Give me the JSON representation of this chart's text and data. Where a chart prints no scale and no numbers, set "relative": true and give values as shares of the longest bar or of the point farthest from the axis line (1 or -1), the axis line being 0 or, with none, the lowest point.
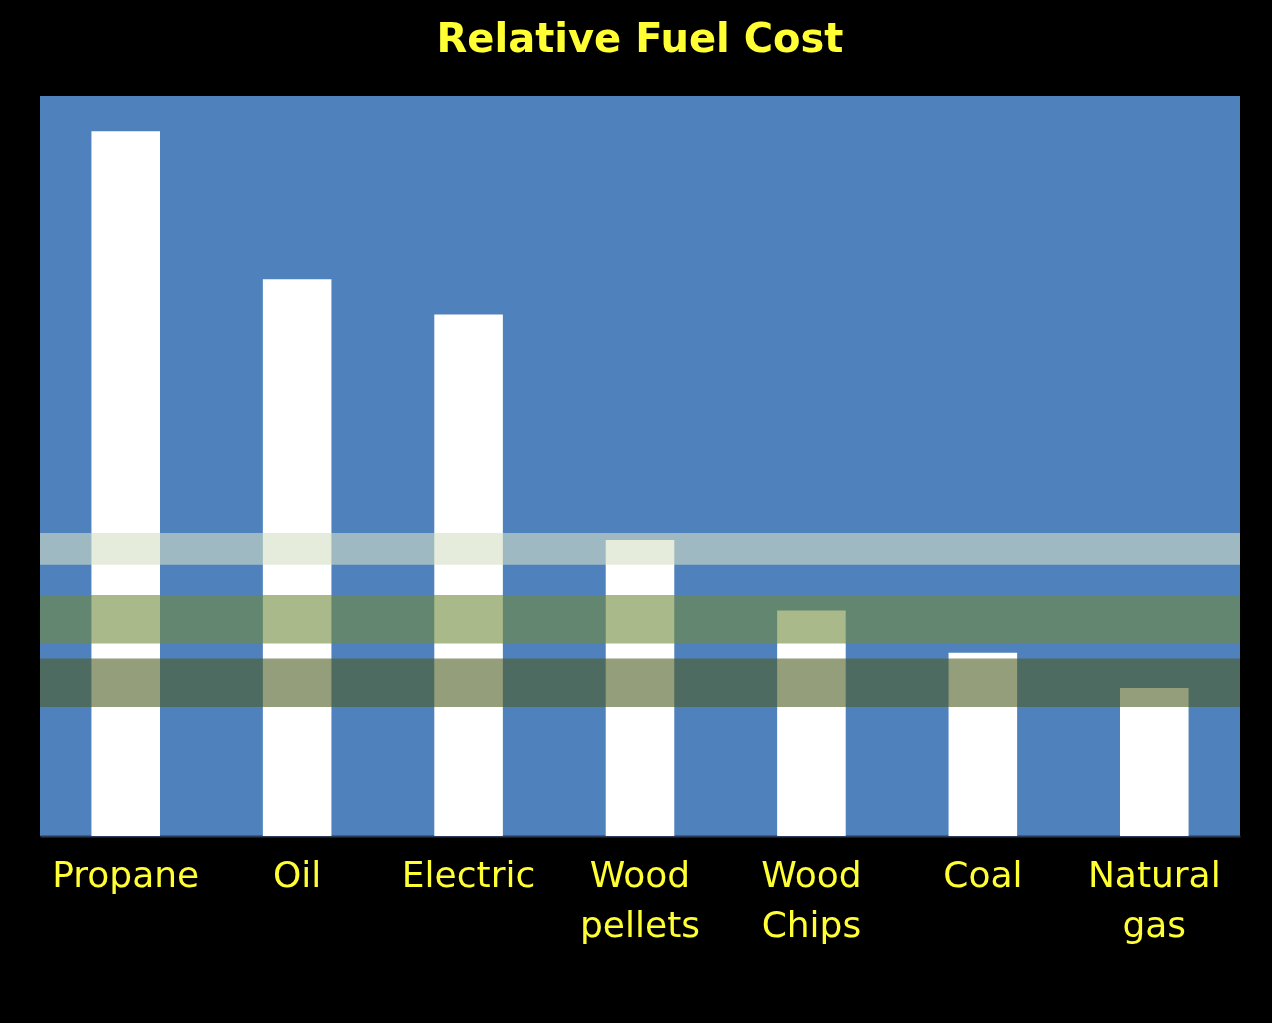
{
  "chart_data": {
    "type": "bar",
    "title": "Relative Fuel Cost",
    "categories": [
      "Propane",
      "Oil",
      "Electric",
      "Wood pellets",
      "Wood Chips",
      "Coal",
      "Natural gas"
    ],
    "values": [
      1,
      0.79,
      0.74,
      0.42,
      0.32,
      0.26,
      0.21
    ],
    "color": "#ffffff",
    "relative": true,
    "bands": [
      {
        "axis": "y",
        "from": 0.385,
        "to": 0.43,
        "color": "#d4dfc4"
      },
      {
        "axis": "y",
        "from": 0.273,
        "to": 0.342,
        "color": "#6f8a3a"
      },
      {
        "axis": "y",
        "from": 0.183,
        "to": 0.252,
        "color": "#4d5e22"
      }
    ]
  }
}
